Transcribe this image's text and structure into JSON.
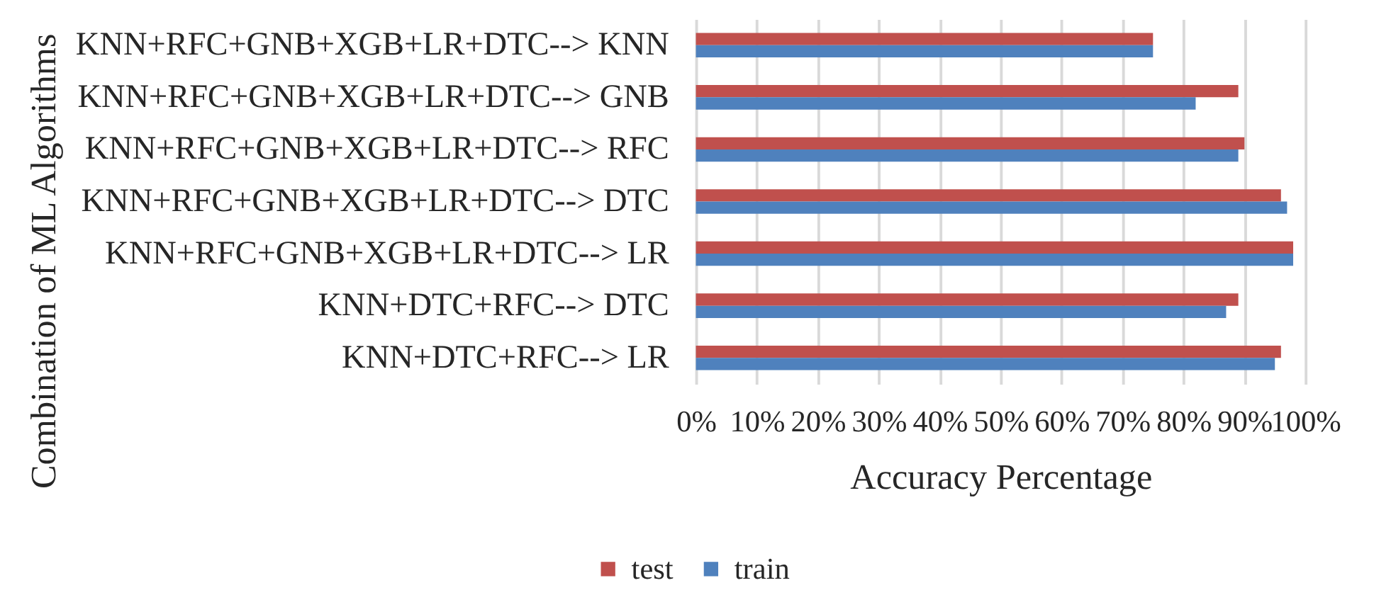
{
  "chart_data": {
    "type": "bar",
    "orientation": "horizontal",
    "xlabel": "Accuracy Percentage",
    "ylabel": "Combination of ML Algorithms",
    "categories": [
      "KNN+RFC+GNB+XGB+LR+DTC--> KNN",
      "KNN+RFC+GNB+XGB+LR+DTC--> GNB",
      "KNN+RFC+GNB+XGB+LR+DTC--> RFC",
      "KNN+RFC+GNB+XGB+LR+DTC--> DTC",
      "KNN+RFC+GNB+XGB+LR+DTC--> LR",
      "KNN+DTC+RFC--> DTC",
      "KNN+DTC+RFC--> LR"
    ],
    "series": [
      {
        "name": "test",
        "color": "#c0504d",
        "values": [
          75,
          89,
          90,
          96,
          98,
          89,
          96
        ]
      },
      {
        "name": "train",
        "color": "#4f81bd",
        "values": [
          75,
          82,
          89,
          97,
          98,
          87,
          95
        ]
      }
    ],
    "xlim": [
      0,
      100
    ],
    "xticks": [
      {
        "value": 0,
        "label": "0%"
      },
      {
        "value": 10,
        "label": "10%"
      },
      {
        "value": 20,
        "label": "20%"
      },
      {
        "value": 30,
        "label": "30%"
      },
      {
        "value": 40,
        "label": "40%"
      },
      {
        "value": 50,
        "label": "50%"
      },
      {
        "value": 60,
        "label": "60%"
      },
      {
        "value": 70,
        "label": "70%"
      },
      {
        "value": 80,
        "label": "80%"
      },
      {
        "value": 90,
        "label": "90%"
      },
      {
        "value": 100,
        "label": "100%"
      }
    ],
    "grid": "x",
    "legend": "bottom"
  }
}
